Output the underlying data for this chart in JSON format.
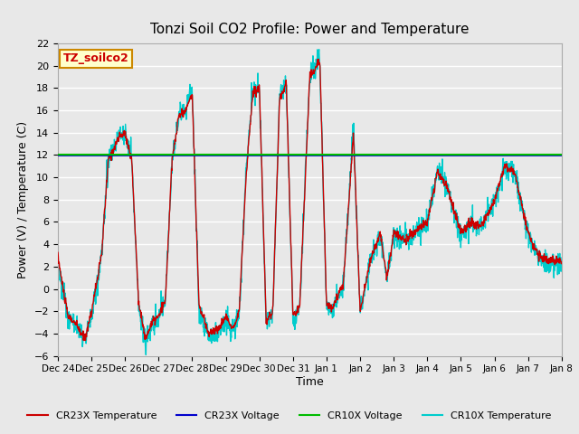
{
  "title": "Tonzi Soil CO2 Profile: Power and Temperature",
  "ylabel": "Power (V) / Temperature (C)",
  "xlabel": "Time",
  "ylim": [
    -6,
    22
  ],
  "yticks": [
    -6,
    -4,
    -2,
    0,
    2,
    4,
    6,
    8,
    10,
    12,
    14,
    16,
    18,
    20,
    22
  ],
  "cr23x_voltage_value": 12.0,
  "cr10x_voltage_value": 12.0,
  "bg_color": "#e8e8e8",
  "plot_bg_color": "#e8e8e8",
  "grid_color": "#ffffff",
  "cr23x_temp_color": "#cc0000",
  "cr23x_volt_color": "#0000cc",
  "cr10x_volt_color": "#00bb00",
  "cr10x_temp_color": "#00cccc",
  "legend_items": [
    "CR23X Temperature",
    "CR23X Voltage",
    "CR10X Voltage",
    "CR10X Temperature"
  ],
  "legend_colors": [
    "#cc0000",
    "#0000cc",
    "#00bb00",
    "#00cccc"
  ],
  "annotation_text": "TZ_soilco2",
  "annotation_color": "#cc0000",
  "annotation_bg": "#ffffcc",
  "annotation_border": "#cc8800",
  "x_tick_labels": [
    "Dec 24",
    "Dec 25",
    "Dec 26",
    "Dec 27",
    "Dec 28",
    "Dec 29",
    "Dec 30",
    "Dec 31",
    "Jan 1",
    "Jan 2",
    "Jan 3",
    "Jan 4",
    "Jan 5",
    "Jan 6",
    "Jan 7",
    "Jan 8"
  ],
  "x_tick_positions": [
    0,
    1,
    2,
    3,
    4,
    5,
    6,
    7,
    8,
    9,
    10,
    11,
    12,
    13,
    14,
    15
  ]
}
